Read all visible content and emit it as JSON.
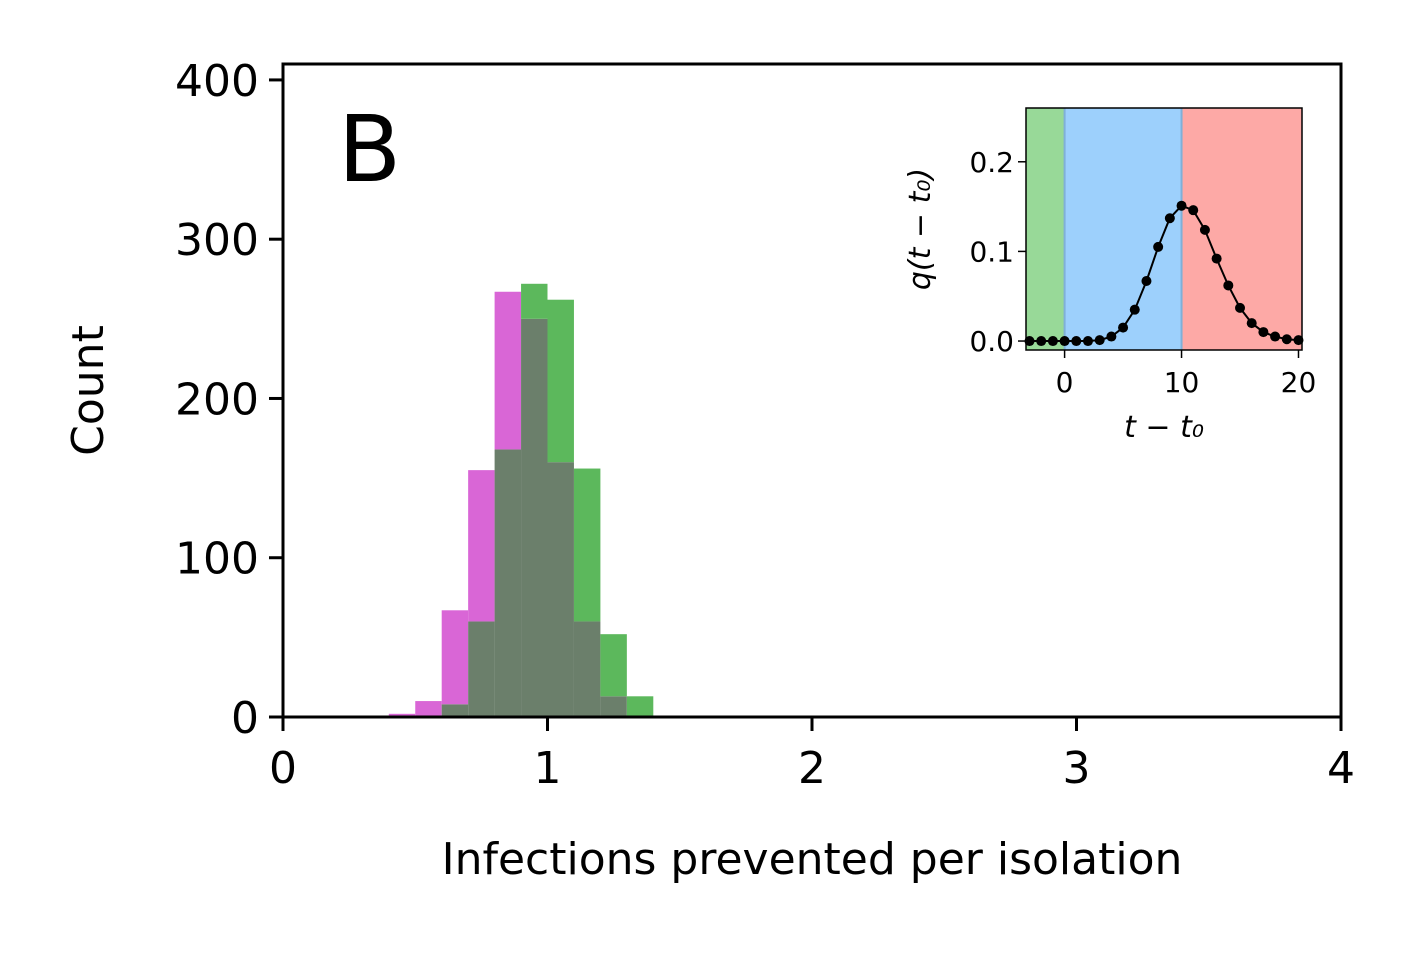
{
  "chart_data": [
    {
      "type": "histogram",
      "panel_letter": "B",
      "xlabel": "Infections prevented per isolation",
      "ylabel": "Count",
      "xlim": [
        0,
        4
      ],
      "ylim": [
        0,
        410
      ],
      "x_ticks": [
        0,
        1,
        2,
        3,
        4
      ],
      "y_ticks": [
        0,
        100,
        200,
        300,
        400
      ],
      "bin_width": 0.1,
      "series": [
        {
          "color": "#d966d6",
          "bin_starts": [
            0.4,
            0.5,
            0.6,
            0.7,
            0.8,
            0.9,
            1.0,
            1.1,
            1.2
          ],
          "counts": [
            2,
            10,
            67,
            155,
            267,
            250,
            160,
            60,
            13
          ]
        },
        {
          "color": "#5cb85c",
          "bin_starts": [
            0.6,
            0.7,
            0.8,
            0.9,
            1.0,
            1.1,
            1.2,
            1.3
          ],
          "counts": [
            8,
            60,
            168,
            272,
            262,
            156,
            52,
            13
          ]
        }
      ],
      "overlap_color": "#6b7f6b",
      "grid": false,
      "legend": "none"
    },
    {
      "type": "line",
      "position": "inset top-right",
      "xlabel": "t − t₀",
      "ylabel": "q(t − t₀)",
      "xlim": [
        -3.3,
        20.3
      ],
      "ylim": [
        -0.01,
        0.26
      ],
      "x_ticks": [
        0,
        10,
        20
      ],
      "y_ticks": [
        0.0,
        0.1,
        0.2
      ],
      "y_tick_labels": [
        "0.0",
        "0.1",
        "0.2"
      ],
      "regions": [
        {
          "x_from": -3.3,
          "x_to": 0,
          "color": "#98d998"
        },
        {
          "x_from": 0,
          "x_to": 10,
          "color": "#9dd0fc"
        },
        {
          "x_from": 10,
          "x_to": 20.3,
          "color": "#fda9a6"
        }
      ],
      "series": [
        {
          "color": "#000000",
          "x": [
            -3,
            -2,
            -1,
            0,
            1,
            2,
            3,
            4,
            5,
            6,
            7,
            8,
            9,
            10,
            11,
            12,
            13,
            14,
            15,
            16,
            17,
            18,
            19,
            20
          ],
          "y": [
            0.0,
            0.0,
            0.0,
            0.0,
            0.0,
            0.0,
            0.001,
            0.005,
            0.015,
            0.035,
            0.067,
            0.105,
            0.137,
            0.151,
            0.146,
            0.124,
            0.092,
            0.062,
            0.037,
            0.02,
            0.01,
            0.005,
            0.002,
            0.001
          ]
        }
      ],
      "grid": false,
      "legend": "none"
    }
  ]
}
